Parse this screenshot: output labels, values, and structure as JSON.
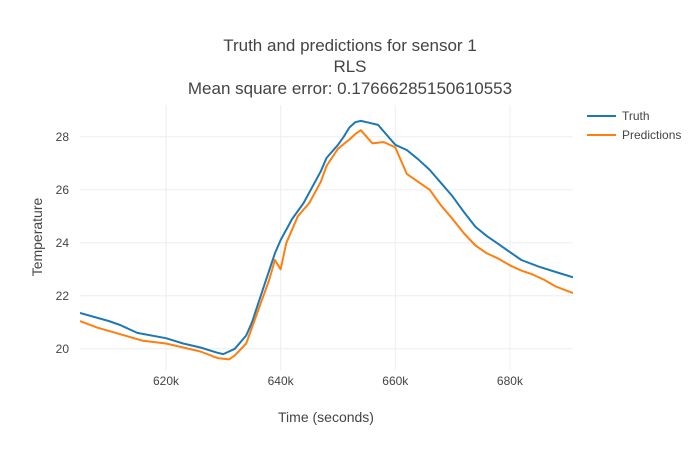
{
  "chart_data": {
    "type": "line",
    "title_lines": [
      "Truth and predictions for sensor 1",
      "RLS",
      "Mean square error: 0.17666285150610553"
    ],
    "xlabel": "Time (seconds)",
    "ylabel": "Temperature",
    "xlim": [
      605000,
      691000
    ],
    "ylim": [
      19.2,
      29.2
    ],
    "x_ticks": [
      {
        "value": 620000,
        "label": "620k"
      },
      {
        "value": 640000,
        "label": "640k"
      },
      {
        "value": 660000,
        "label": "660k"
      },
      {
        "value": 680000,
        "label": "680k"
      }
    ],
    "y_ticks": [
      {
        "value": 20,
        "label": "20"
      },
      {
        "value": 22,
        "label": "22"
      },
      {
        "value": 24,
        "label": "24"
      },
      {
        "value": 26,
        "label": "26"
      },
      {
        "value": 28,
        "label": "28"
      }
    ],
    "grid": true,
    "legend_position": "top-right",
    "series": [
      {
        "name": "Truth",
        "color": "#1f77b4",
        "points": [
          [
            605000,
            21.35
          ],
          [
            610000,
            21.05
          ],
          [
            612000,
            20.9
          ],
          [
            615000,
            20.6
          ],
          [
            620000,
            20.4
          ],
          [
            623000,
            20.2
          ],
          [
            626000,
            20.05
          ],
          [
            629000,
            19.85
          ],
          [
            630000,
            19.8
          ],
          [
            632000,
            20.0
          ],
          [
            634000,
            20.5
          ],
          [
            635000,
            21.0
          ],
          [
            637000,
            22.3
          ],
          [
            639000,
            23.6
          ],
          [
            640000,
            24.1
          ],
          [
            642000,
            24.9
          ],
          [
            644000,
            25.5
          ],
          [
            645000,
            25.9
          ],
          [
            647000,
            26.7
          ],
          [
            648000,
            27.2
          ],
          [
            650000,
            27.7
          ],
          [
            651000,
            28.0
          ],
          [
            652000,
            28.35
          ],
          [
            653000,
            28.55
          ],
          [
            654000,
            28.6
          ],
          [
            655000,
            28.55
          ],
          [
            657000,
            28.45
          ],
          [
            658000,
            28.2
          ],
          [
            660000,
            27.7
          ],
          [
            662000,
            27.5
          ],
          [
            664000,
            27.15
          ],
          [
            666000,
            26.75
          ],
          [
            668000,
            26.25
          ],
          [
            670000,
            25.75
          ],
          [
            672000,
            25.15
          ],
          [
            674000,
            24.6
          ],
          [
            676000,
            24.25
          ],
          [
            678000,
            23.95
          ],
          [
            680000,
            23.65
          ],
          [
            682000,
            23.35
          ],
          [
            685000,
            23.1
          ],
          [
            688000,
            22.9
          ],
          [
            691000,
            22.7
          ]
        ]
      },
      {
        "name": "Predictions",
        "color": "#ff7f0e",
        "points": [
          [
            605000,
            21.05
          ],
          [
            608000,
            20.8
          ],
          [
            612000,
            20.55
          ],
          [
            616000,
            20.3
          ],
          [
            620000,
            20.2
          ],
          [
            623000,
            20.05
          ],
          [
            626000,
            19.9
          ],
          [
            629000,
            19.65
          ],
          [
            631000,
            19.6
          ],
          [
            632000,
            19.75
          ],
          [
            634000,
            20.2
          ],
          [
            636000,
            21.4
          ],
          [
            638000,
            22.6
          ],
          [
            639000,
            23.35
          ],
          [
            640000,
            23.0
          ],
          [
            641000,
            24.0
          ],
          [
            643000,
            25.0
          ],
          [
            645000,
            25.5
          ],
          [
            647000,
            26.3
          ],
          [
            648000,
            26.9
          ],
          [
            650000,
            27.55
          ],
          [
            652000,
            27.9
          ],
          [
            653000,
            28.1
          ],
          [
            654000,
            28.25
          ],
          [
            655000,
            28.0
          ],
          [
            656000,
            27.75
          ],
          [
            658000,
            27.8
          ],
          [
            660000,
            27.6
          ],
          [
            662000,
            26.6
          ],
          [
            664000,
            26.3
          ],
          [
            666000,
            26.0
          ],
          [
            668000,
            25.4
          ],
          [
            670000,
            24.9
          ],
          [
            672000,
            24.35
          ],
          [
            674000,
            23.9
          ],
          [
            676000,
            23.6
          ],
          [
            678000,
            23.4
          ],
          [
            680000,
            23.15
          ],
          [
            682000,
            22.95
          ],
          [
            684000,
            22.8
          ],
          [
            686000,
            22.6
          ],
          [
            688000,
            22.35
          ],
          [
            691000,
            22.1
          ]
        ]
      }
    ]
  }
}
